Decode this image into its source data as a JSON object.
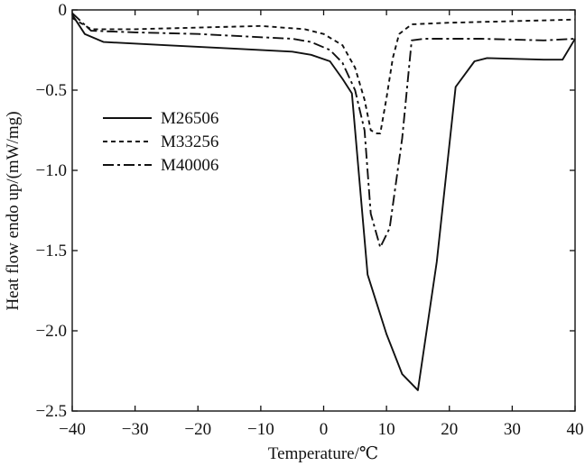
{
  "chart_data": {
    "type": "line",
    "title": "",
    "xlabel": "Temperature/℃",
    "ylabel": "Heat flow endo up/(mW/mg)",
    "xlim": [
      -40,
      40
    ],
    "ylim": [
      -2.5,
      0
    ],
    "xticks": [
      -40,
      -30,
      -20,
      -10,
      0,
      10,
      20,
      30,
      40
    ],
    "xtick_labels": [
      "−40",
      "−30",
      "−20",
      "−10",
      "0",
      "10",
      "20",
      "30",
      "40"
    ],
    "yticks": [
      0,
      -0.5,
      -1.0,
      -1.5,
      -2.0,
      -2.5
    ],
    "ytick_labels": [
      "0",
      "−0.5",
      "−1.0",
      "−1.5",
      "−2.0",
      "−2.5"
    ],
    "legend_position": "left-upper",
    "grid": false,
    "series": [
      {
        "name": "M26506",
        "style": "solid",
        "points": [
          [
            -40,
            -0.03
          ],
          [
            -38,
            -0.15
          ],
          [
            -35,
            -0.2
          ],
          [
            -25,
            -0.22
          ],
          [
            -15,
            -0.24
          ],
          [
            -5,
            -0.26
          ],
          [
            -2,
            -0.28
          ],
          [
            1,
            -0.32
          ],
          [
            3,
            -0.43
          ],
          [
            4.5,
            -0.52
          ],
          [
            7,
            -1.65
          ],
          [
            10,
            -2.02
          ],
          [
            12.5,
            -2.27
          ],
          [
            15,
            -2.37
          ],
          [
            18,
            -1.57
          ],
          [
            21,
            -0.48
          ],
          [
            24,
            -0.32
          ],
          [
            26,
            -0.3
          ],
          [
            35,
            -0.31
          ],
          [
            38,
            -0.31
          ],
          [
            40,
            -0.18
          ]
        ]
      },
      {
        "name": "M33256",
        "style": "dashed",
        "points": [
          [
            -40,
            -0.05
          ],
          [
            -37,
            -0.12
          ],
          [
            -30,
            -0.12
          ],
          [
            -20,
            -0.11
          ],
          [
            -10,
            -0.1
          ],
          [
            -3,
            -0.12
          ],
          [
            0,
            -0.15
          ],
          [
            3,
            -0.22
          ],
          [
            5,
            -0.36
          ],
          [
            6.5,
            -0.56
          ],
          [
            7.5,
            -0.75
          ],
          [
            8.5,
            -0.77
          ],
          [
            9,
            -0.77
          ],
          [
            10,
            -0.55
          ],
          [
            11,
            -0.3
          ],
          [
            12,
            -0.15
          ],
          [
            14,
            -0.09
          ],
          [
            20,
            -0.08
          ],
          [
            30,
            -0.07
          ],
          [
            40,
            -0.06
          ]
        ]
      },
      {
        "name": "M40006",
        "style": "dashdot",
        "points": [
          [
            -40,
            -0.02
          ],
          [
            -37,
            -0.13
          ],
          [
            -30,
            -0.14
          ],
          [
            -20,
            -0.15
          ],
          [
            -10,
            -0.17
          ],
          [
            -5,
            -0.18
          ],
          [
            -2,
            -0.2
          ],
          [
            1,
            -0.25
          ],
          [
            3,
            -0.33
          ],
          [
            5,
            -0.5
          ],
          [
            6.5,
            -0.75
          ],
          [
            7.5,
            -1.27
          ],
          [
            9,
            -1.48
          ],
          [
            10.5,
            -1.36
          ],
          [
            12.5,
            -0.8
          ],
          [
            14,
            -0.19
          ],
          [
            16,
            -0.18
          ],
          [
            25,
            -0.18
          ],
          [
            35,
            -0.19
          ],
          [
            40,
            -0.18
          ]
        ]
      }
    ]
  }
}
